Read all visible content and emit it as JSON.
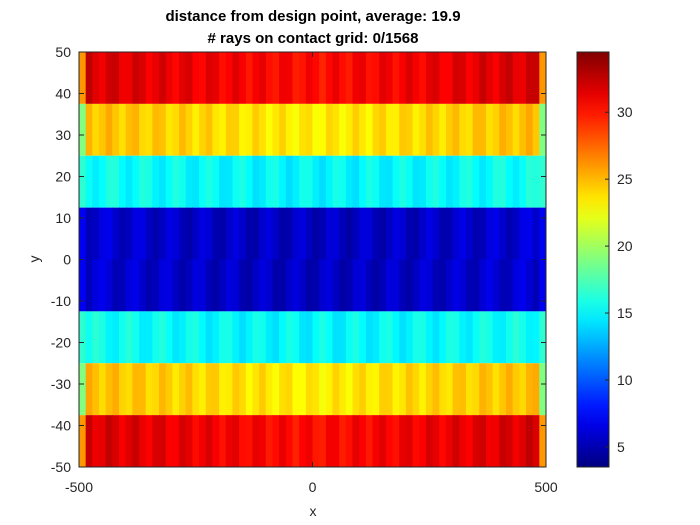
{
  "chart_data": {
    "type": "heatmap",
    "title": [
      "distance from design point, average: 19.9",
      "# rays on contact grid: 0/1568"
    ],
    "xlabel": "x",
    "ylabel": "y",
    "xlim": [
      -500,
      500
    ],
    "ylim": [
      -50,
      50
    ],
    "xticks": [
      "-500",
      "0",
      "500"
    ],
    "yticks": [
      "50",
      "40",
      "30",
      "20",
      "10",
      "0",
      "-10",
      "-20",
      "-30",
      "-40",
      "-50"
    ],
    "grid": false,
    "colormap": "jet",
    "colorbar": {
      "placement": "right",
      "range": [
        3.5,
        34.5
      ],
      "ticks": [
        "30",
        "25",
        "20",
        "15",
        "10",
        "5"
      ]
    },
    "bands": [
      {
        "y_from": 37.5,
        "y_to": 50,
        "value": 32.5
      },
      {
        "y_from": 25,
        "y_to": 37.5,
        "value": 25.5
      },
      {
        "y_from": 12.5,
        "y_to": 25,
        "value": 15
      },
      {
        "y_from": 0,
        "y_to": 12.5,
        "value": 5.5
      },
      {
        "y_from": -12.5,
        "y_to": 0,
        "value": 5.5
      },
      {
        "y_from": -25,
        "y_to": -12.5,
        "value": 15
      },
      {
        "y_from": -37.5,
        "y_to": -25,
        "value": 25.5
      },
      {
        "y_from": -50,
        "y_to": -37.5,
        "value": 32.5
      }
    ]
  }
}
